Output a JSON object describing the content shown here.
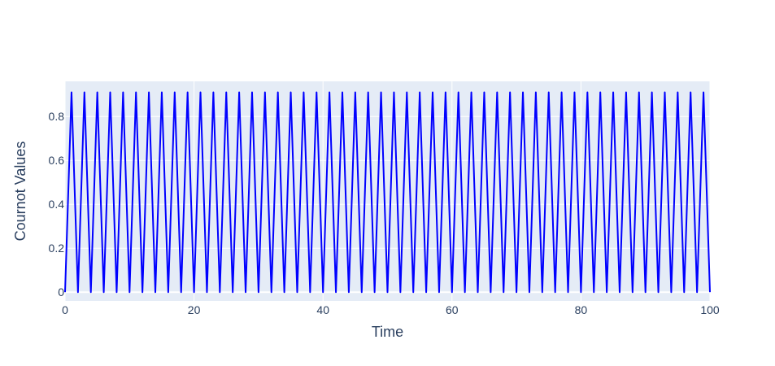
{
  "chart_data": {
    "type": "line",
    "title": "",
    "xlabel": "Time",
    "ylabel": "Cournot Values",
    "xlim": [
      0,
      100
    ],
    "ylim": [
      -0.04,
      0.96
    ],
    "x_ticks": [
      0,
      20,
      40,
      60,
      80,
      100
    ],
    "x_tick_labels": [
      "0",
      "20",
      "40",
      "60",
      "80",
      "100"
    ],
    "y_ticks": [
      0,
      0.2,
      0.4,
      0.6,
      0.8
    ],
    "y_tick_labels": [
      "0",
      "0.2",
      "0.4",
      "0.6",
      "0.8"
    ],
    "grid": true,
    "legend": "none",
    "colors": {
      "plot_background": "#e5ecf6",
      "grid": "#ffffff",
      "line": "#0000ff",
      "text": "#2a3f5f"
    },
    "series": [
      {
        "pattern": "alternating",
        "period": 2,
        "values": [
          0,
          0.91,
          0
        ],
        "x": [
          0,
          1,
          2
        ],
        "x_start": 0,
        "x_end": 100
      }
    ]
  }
}
